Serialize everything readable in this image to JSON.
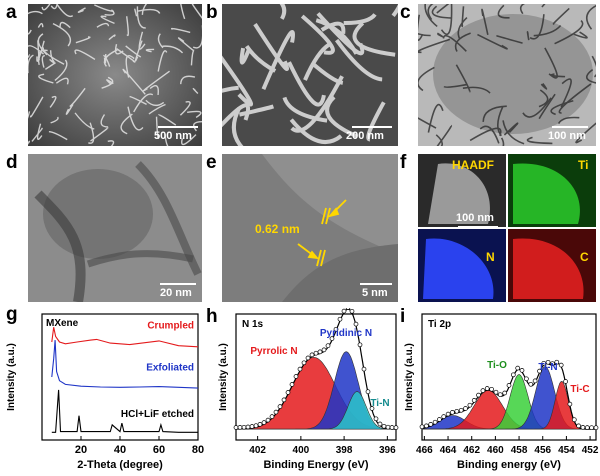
{
  "panels": {
    "a": {
      "label": "a",
      "scale": "500 nm"
    },
    "b": {
      "label": "b",
      "scale": "200 nm"
    },
    "c": {
      "label": "c",
      "scale": "100 nm"
    },
    "d": {
      "label": "d",
      "scale": "20 nm"
    },
    "e": {
      "label": "e",
      "scale": "5 nm",
      "annotation": "0.62 nm"
    },
    "f": {
      "label": "f",
      "scale": "100 nm",
      "maps": [
        "HAADF",
        "Ti",
        "N",
        "C"
      ]
    },
    "g": {
      "label": "g"
    },
    "h": {
      "label": "h"
    },
    "i": {
      "label": "i"
    }
  },
  "colors": {
    "red": "#e41a1c",
    "blue": "#1f35c7",
    "teal": "#2bc4c8",
    "green": "#3ad03a"
  },
  "chart_data": [
    {
      "type": "line",
      "title": "MXene",
      "xlabel": "2-Theta (degree)",
      "ylabel": "Intensity (a.u.)",
      "xlim": [
        0,
        80
      ],
      "xticks": [
        20,
        40,
        60,
        80
      ],
      "series": [
        {
          "name": "Crumpled",
          "x": [
            5,
            6,
            7,
            9,
            12,
            18,
            25,
            28,
            35,
            45,
            60,
            70,
            80
          ],
          "y": [
            2.55,
            2.95,
            2.7,
            2.55,
            2.5,
            2.55,
            2.6,
            2.62,
            2.52,
            2.48,
            2.58,
            2.45,
            2.42
          ]
        },
        {
          "name": "Exfoliated",
          "x": [
            5,
            6,
            6.7,
            7.5,
            9,
            12,
            20,
            30,
            40,
            50,
            60,
            70,
            80
          ],
          "y": [
            1.6,
            2.1,
            2.6,
            1.75,
            1.5,
            1.4,
            1.35,
            1.33,
            1.32,
            1.33,
            1.34,
            1.32,
            1.3
          ]
        },
        {
          "name": "HCl+LiF etched",
          "x": [
            5,
            7,
            8.5,
            9.5,
            12,
            18,
            19,
            20,
            28,
            35,
            36,
            40,
            41,
            42,
            60,
            61,
            62,
            70,
            80
          ],
          "y": [
            0.1,
            0.1,
            1.25,
            0.12,
            0.12,
            0.12,
            0.55,
            0.12,
            0.12,
            0.12,
            0.3,
            0.12,
            0.35,
            0.12,
            0.12,
            0.3,
            0.12,
            0.1,
            0.1
          ]
        }
      ]
    },
    {
      "type": "area",
      "title": "N 1s",
      "xlabel": "Binding Energy (eV)",
      "ylabel": "Intensity (a.u.)",
      "xlim": [
        403,
        395.6
      ],
      "xticks": [
        402,
        400,
        398,
        396
      ],
      "series": [
        {
          "name": "Pyrrolic N",
          "center": 399.4,
          "height": 0.63,
          "width": 1.0
        },
        {
          "name": "Pyridinic N",
          "center": 397.9,
          "height": 0.68,
          "width": 0.55
        },
        {
          "name": "Ti-N",
          "center": 397.4,
          "height": 0.33,
          "width": 0.42
        }
      ]
    },
    {
      "type": "area",
      "title": "Ti 2p",
      "xlabel": "Binding energy (eV)",
      "ylabel": "Intensity (a.u.)",
      "xlim": [
        466.2,
        451.5
      ],
      "xticks": [
        466,
        464,
        462,
        460,
        458,
        456,
        454,
        452
      ],
      "series": [
        {
          "name": "",
          "center": 463.6,
          "height": 0.12,
          "width": 1.1
        },
        {
          "name": "",
          "center": 460.6,
          "height": 0.34,
          "width": 1.2
        },
        {
          "name": "Ti-O",
          "center": 458.0,
          "height": 0.48,
          "width": 0.75
        },
        {
          "name": "Ti-N",
          "center": 455.8,
          "height": 0.55,
          "width": 0.8
        },
        {
          "name": "Ti-C",
          "center": 454.4,
          "height": 0.42,
          "width": 0.55
        }
      ]
    }
  ]
}
